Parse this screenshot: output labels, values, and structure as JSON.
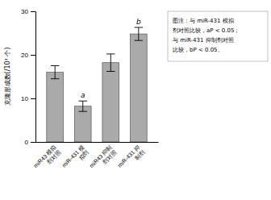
{
  "chart_data": {
    "type": "bar",
    "categories": [
      "miR43 模拟\n剂对照",
      "miR-431 模\n拟剂",
      "miR43 抑制\n剂对照",
      "miR-431 抑\n制剂"
    ],
    "values": [
      16.0,
      8.2,
      18.2,
      24.8
    ],
    "errors": [
      1.5,
      1.2,
      2.0,
      1.5
    ],
    "color": "#aaaaaa",
    "ylabel": "克隆形成数(/10³ 个)",
    "ylim": [
      0,
      30
    ],
    "yticks": [
      0,
      10,
      20,
      30
    ],
    "annotations": [
      {
        "text": "a",
        "category": "miR-431 模\n拟剂"
      },
      {
        "text": "b",
        "category": "miR-431 抑\n制剂"
      }
    ],
    "note": "图注：与 miR-431 模拟\n剂对照比较，aP < 0.05；\n与 miR-431 抑制剂对照\n比较，bP < 0.05。"
  }
}
